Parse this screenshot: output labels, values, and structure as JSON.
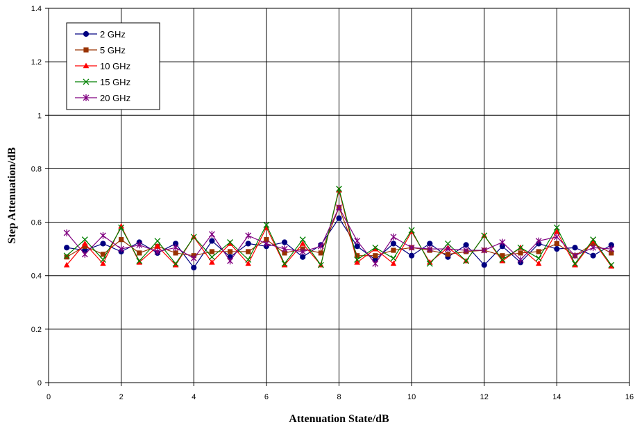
{
  "chart_data": {
    "type": "line",
    "title": "",
    "xlabel": "Attenuation State/dB",
    "ylabel": "Step Attenuation/dB",
    "xlim": [
      0,
      16
    ],
    "ylim": [
      0,
      1.4
    ],
    "x_ticks": [
      0,
      2,
      4,
      6,
      8,
      10,
      12,
      14,
      16
    ],
    "y_ticks": [
      0,
      0.2,
      0.4,
      0.6,
      0.8,
      1,
      1.2,
      1.4
    ],
    "x_tick_labels": [
      "0",
      "2",
      "4",
      "6",
      "8",
      "10",
      "12",
      "14",
      "16"
    ],
    "y_tick_labels": [
      "0",
      "0.2",
      "0.4",
      "0.6",
      "0.8",
      "1",
      "1.2",
      "1.4"
    ],
    "grid": true,
    "legend_position": "top-left",
    "x": [
      0.5,
      1,
      1.5,
      2,
      2.5,
      3,
      3.5,
      4,
      4.5,
      5,
      5.5,
      6,
      6.5,
      7,
      7.5,
      8,
      8.5,
      9,
      9.5,
      10,
      10.5,
      11,
      11.5,
      12,
      12.5,
      13,
      13.5,
      14,
      14.5,
      15,
      15.5
    ],
    "series": [
      {
        "name": "2 GHz",
        "color": "#000080",
        "marker": "circle",
        "values": [
          0.505,
          0.495,
          0.52,
          0.49,
          0.525,
          0.485,
          0.52,
          0.43,
          0.53,
          0.47,
          0.52,
          0.51,
          0.525,
          0.47,
          0.515,
          0.615,
          0.51,
          0.46,
          0.52,
          0.475,
          0.52,
          0.47,
          0.515,
          0.44,
          0.51,
          0.45,
          0.52,
          0.5,
          0.505,
          0.475,
          0.515
        ]
      },
      {
        "name": "5 GHz",
        "color": "#993300",
        "marker": "square",
        "values": [
          0.47,
          0.51,
          0.48,
          0.535,
          0.485,
          0.51,
          0.485,
          0.475,
          0.49,
          0.49,
          0.49,
          0.535,
          0.485,
          0.5,
          0.485,
          0.655,
          0.475,
          0.475,
          0.495,
          0.505,
          0.495,
          0.48,
          0.49,
          0.495,
          0.475,
          0.485,
          0.49,
          0.52,
          0.475,
          0.52,
          0.485
        ]
      },
      {
        "name": "10 GHz",
        "color": "#ff0000",
        "marker": "triangle",
        "values": [
          0.44,
          0.52,
          0.445,
          0.585,
          0.45,
          0.51,
          0.44,
          0.545,
          0.45,
          0.52,
          0.445,
          0.58,
          0.44,
          0.52,
          0.44,
          0.72,
          0.45,
          0.5,
          0.445,
          0.565,
          0.45,
          0.505,
          0.455,
          0.55,
          0.455,
          0.505,
          0.445,
          0.565,
          0.44,
          0.53,
          0.435
        ]
      },
      {
        "name": "15 GHz",
        "color": "#008000",
        "marker": "x",
        "values": [
          0.475,
          0.535,
          0.46,
          0.58,
          0.455,
          0.53,
          0.445,
          0.545,
          0.47,
          0.525,
          0.46,
          0.59,
          0.445,
          0.535,
          0.44,
          0.725,
          0.46,
          0.505,
          0.465,
          0.57,
          0.445,
          0.52,
          0.455,
          0.55,
          0.46,
          0.505,
          0.465,
          0.58,
          0.445,
          0.535,
          0.44
        ]
      },
      {
        "name": "20 GHz",
        "color": "#800080",
        "marker": "star",
        "values": [
          0.56,
          0.48,
          0.55,
          0.5,
          0.515,
          0.49,
          0.505,
          0.465,
          0.555,
          0.455,
          0.55,
          0.52,
          0.5,
          0.49,
          0.51,
          0.655,
          0.53,
          0.445,
          0.545,
          0.505,
          0.5,
          0.5,
          0.495,
          0.495,
          0.525,
          0.46,
          0.53,
          0.545,
          0.475,
          0.505,
          0.5
        ]
      }
    ]
  }
}
